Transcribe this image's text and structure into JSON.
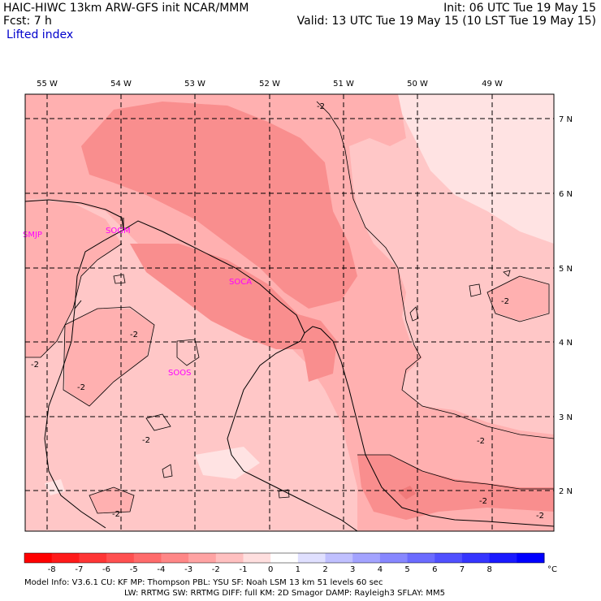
{
  "header": {
    "title_line1": "HAIC-HIWC 13km ARW-GFS init   NCAR/MMM",
    "title_line2": "Fcst:     7 h",
    "field_name": "Lifted index",
    "init_line": "Init: 06 UTC Tue 19 May 15",
    "valid_line": "Valid: 13 UTC Tue 19 May 15 (10 LST Tue 19 May 15)"
  },
  "map": {
    "longitude_labels": [
      "55 W",
      "54 W",
      "53 W",
      "52 W",
      "51 W",
      "50 W",
      "49 W"
    ],
    "latitude_labels": [
      "7 N",
      "6 N",
      "5 N",
      "4 N",
      "3 N",
      "2 N"
    ],
    "station_labels": [
      "SMJP",
      "SOGM",
      "SOCA",
      "SOOS"
    ],
    "contour_labels": [
      "-2",
      "-2",
      "-2",
      "-2",
      "-2",
      "-2",
      "-2",
      "-2",
      "-2",
      "-2"
    ],
    "colors": {
      "level_minus1_to_0": "#ffe3e3",
      "level_minus2_to_minus1": "#ffc7c7",
      "level_minus3_to_minus2": "#ffa9a9",
      "level_minus4_to_minus3": "#fb8f8f",
      "coast_line": "#000000",
      "station_label": "#ff00ff"
    }
  },
  "colorbar": {
    "ticks": [
      "-8",
      "-7",
      "-6",
      "-5",
      "-4",
      "-3",
      "-2",
      "-1",
      "0",
      "1",
      "2",
      "3",
      "4",
      "5",
      "6",
      "7",
      "8"
    ],
    "unit": "°C",
    "colors": [
      "#ff0000",
      "#ff1a1a",
      "#ff3535",
      "#ff5050",
      "#ff6b6b",
      "#ff8787",
      "#ffa3a3",
      "#ffc0c0",
      "#ffdfdf",
      "#ffffff",
      "#e0e0ff",
      "#c0c0ff",
      "#a3a3ff",
      "#8787ff",
      "#6b6bff",
      "#5050ff",
      "#3535ff",
      "#1a1aff",
      "#0000ff"
    ]
  },
  "footer": {
    "line1": "Model Info: V3.6.1     CU: KF       MP: Thompson     PBL: YSU        SF: Noah LSM      13 km    51 levels   60 sec",
    "line2": "LW: RRTMG    SW: RRTMG   DIFF: full    KM: 2D Smagor DAMP: Rayleigh3   SFLAY: MM5"
  }
}
